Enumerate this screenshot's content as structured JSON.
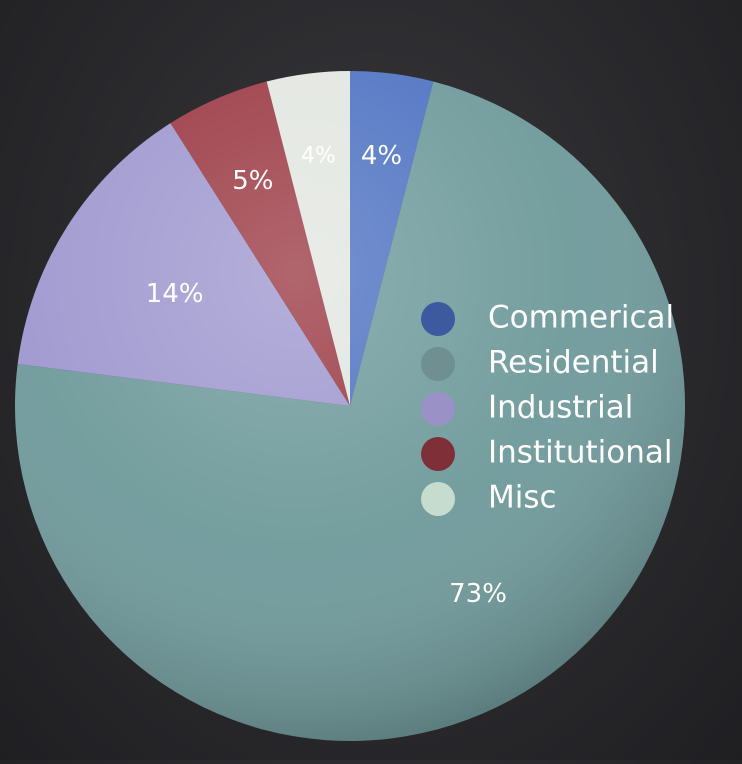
{
  "chart_data": {
    "type": "pie",
    "title": "",
    "slices": [
      {
        "name": "Commerical",
        "value": 4,
        "label": "4%",
        "color": "#4f73c2"
      },
      {
        "name": "Residential",
        "value": 73,
        "label": "73%",
        "color": "#6f9a9b"
      },
      {
        "name": "Industrial",
        "value": 14,
        "label": "14%",
        "color": "#9f98cf"
      },
      {
        "name": "Institutional",
        "value": 5,
        "label": "5%",
        "color": "#9b3a44"
      },
      {
        "name": "Misc",
        "value": 4,
        "label": "4%",
        "color": "#e2e6e0"
      }
    ],
    "legend": {
      "placement": "right-inside",
      "items": [
        {
          "label": "Commerical",
          "color": "#3d5aa0"
        },
        {
          "label": "Residential",
          "color": "#6f8f90"
        },
        {
          "label": "Industrial",
          "color": "#9a92c6"
        },
        {
          "label": "Institutional",
          "color": "#7e2f38"
        },
        {
          "label": "Misc",
          "color": "#c5dccf"
        }
      ]
    }
  }
}
